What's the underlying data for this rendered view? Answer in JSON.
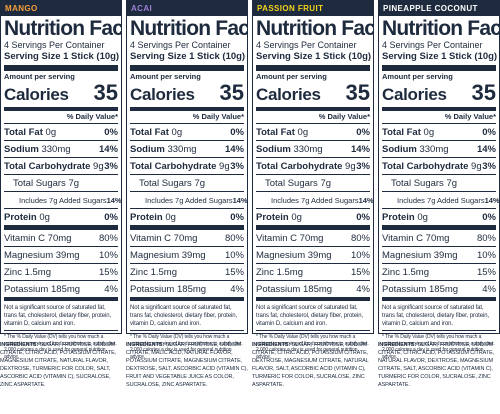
{
  "panels": [
    {
      "flavor": "MANGO",
      "flavor_color": "#f3a03c",
      "title": "Nutrition Facts",
      "servings": "4 Servings Per Container",
      "serving_size": "Serving Size 1 Stick (10g)",
      "amount_per_serving": "Amount per serving",
      "calories_label": "Calories",
      "calories_value": "35",
      "dv_header": "% Daily Value*",
      "nutrients": [
        {
          "label": "Total Fat",
          "amount": "0g",
          "dv": "0%"
        },
        {
          "label": "Sodium",
          "amount": "330mg",
          "dv": "14%"
        },
        {
          "label": "Total Carbohydrate",
          "amount": "9g",
          "dv": "3%"
        },
        {
          "label": "Total Sugars",
          "amount": "7g",
          "dv": ""
        },
        {
          "label": "Includes 7g Added Sugars",
          "amount": "",
          "dv": "14%"
        },
        {
          "label": "Protein",
          "amount": "0g",
          "dv": "0%"
        }
      ],
      "vitamins": [
        {
          "label": "Vitamin C",
          "amount": "70mg",
          "dv": "80%"
        },
        {
          "label": "Magnesium",
          "amount": "39mg",
          "dv": "10%"
        },
        {
          "label": "Zinc",
          "amount": "1.5mg",
          "dv": "15%"
        },
        {
          "label": "Potassium",
          "amount": "185mg",
          "dv": "4%"
        }
      ],
      "note": "Not a significant source of saturated fat, trans fat, cholesterol, dietary fiber, protein, vitamin D, calcium and iron.",
      "footnote": "* The % Daily Value (DV) tells you how much a nutrient in a serving of food contributes to a daily diet. 2,000 calories a day is used for general nutrition advice.",
      "ingredients_label": "INGREDIENTS:",
      "ingredients": "SUGAR, FRUCTOSE, SODIUM CITRATE, CITRIC ACID, POTASSIUM CITRATE, MAGNESIUM CITRATE, NATURAL FLAVOR, DEXTROSE, TURMERIC FOR COLOR, SALT, ASCORBIC ACID (VITAMIN C), SUCRALOSE, ZINC ASPARTATE."
    },
    {
      "flavor": "ACAI",
      "flavor_color": "#9d7fd6",
      "title": "Nutrition Facts",
      "servings": "4 Servings Per Container",
      "serving_size": "Serving Size 1 Stick (10g)",
      "amount_per_serving": "Amount per serving",
      "calories_label": "Calories",
      "calories_value": "35",
      "dv_header": "% Daily Value*",
      "nutrients": [
        {
          "label": "Total Fat",
          "amount": "0g",
          "dv": "0%"
        },
        {
          "label": "Sodium",
          "amount": "330mg",
          "dv": "14%"
        },
        {
          "label": "Total Carbohydrate",
          "amount": "9g",
          "dv": "3%"
        },
        {
          "label": "Total Sugars",
          "amount": "7g",
          "dv": ""
        },
        {
          "label": "Includes 7g Added Sugars",
          "amount": "",
          "dv": "14%"
        },
        {
          "label": "Protein",
          "amount": "0g",
          "dv": "0%"
        }
      ],
      "vitamins": [
        {
          "label": "Vitamin C",
          "amount": "70mg",
          "dv": "80%"
        },
        {
          "label": "Magnesium",
          "amount": "39mg",
          "dv": "10%"
        },
        {
          "label": "Zinc",
          "amount": "1.5mg",
          "dv": "15%"
        },
        {
          "label": "Potassium",
          "amount": "185mg",
          "dv": "4%"
        }
      ],
      "note": "Not a significant source of saturated fat, trans fat, cholesterol, dietary fiber, protein, vitamin D, calcium and iron.",
      "footnote": "* The % Daily Value (DV) tells you how much a nutrient in a serving of food contributes to a daily diet. 2,000 calories a day is used for general nutrition advice.",
      "ingredients_label": "INGREDIENTS:",
      "ingredients": "SUGAR, FRUCTOSE, SODIUM CITRATE, MALIC ACID, NATURAL FLAVOR, POTASSIUM CITRATE, MAGNESIUM CITRATE, DEXTROSE, SALT, ASCORBIC ACID (VITAMIN C), FRUIT AND VEGETABLE JUICE AS COLOR, SUCRALOSE, ZINC ASPARTATE."
    },
    {
      "flavor": "PASSION FRUIT",
      "flavor_color": "#f2d21b",
      "title": "Nutrition Facts",
      "servings": "4 Servings Per Container",
      "serving_size": "Serving Size 1 Stick (10g)",
      "amount_per_serving": "Amount per serving",
      "calories_label": "Calories",
      "calories_value": "35",
      "dv_header": "% Daily Value*",
      "nutrients": [
        {
          "label": "Total Fat",
          "amount": "0g",
          "dv": "0%"
        },
        {
          "label": "Sodium",
          "amount": "330mg",
          "dv": "14%"
        },
        {
          "label": "Total Carbohydrate",
          "amount": "9g",
          "dv": "3%"
        },
        {
          "label": "Total Sugars",
          "amount": "7g",
          "dv": ""
        },
        {
          "label": "Includes 7g Added Sugars",
          "amount": "",
          "dv": "14%"
        },
        {
          "label": "Protein",
          "amount": "0g",
          "dv": "0%"
        }
      ],
      "vitamins": [
        {
          "label": "Vitamin C",
          "amount": "70mg",
          "dv": "80%"
        },
        {
          "label": "Magnesium",
          "amount": "39mg",
          "dv": "10%"
        },
        {
          "label": "Zinc",
          "amount": "1.5mg",
          "dv": "15%"
        },
        {
          "label": "Potassium",
          "amount": "185mg",
          "dv": "4%"
        }
      ],
      "note": "Not a significant source of saturated fat, trans fat, cholesterol, dietary fiber, protein, vitamin D, calcium and iron.",
      "footnote": "* The % Daily Value (DV) tells you how much a nutrient in a serving of food contributes to a daily diet. 2,000 calories a day is used for general nutrition advice.",
      "ingredients_label": "INGREDIENTS:",
      "ingredients": "SUGAR, FRUCTOSE, SODIUM CITRATE, CITRIC ACID, POTASSIUM CITRATE, DEXTROSE, MAGNESIUM CITRATE, NATURAL FLAVOR, SALT, ASCORBIC ACID (VITAMIN C), TURMERIC FOR COLOR, SUCRALOSE, ZINC ASPARTATE."
    },
    {
      "flavor": "PINEAPPLE COCONUT",
      "flavor_color": "#ffffff",
      "title": "Nutrition Facts",
      "servings": "4 Servings Per Container",
      "serving_size": "Serving Size 1 Stick (10g)",
      "amount_per_serving": "Amount per serving",
      "calories_label": "Calories",
      "calories_value": "35",
      "dv_header": "% Daily Value*",
      "nutrients": [
        {
          "label": "Total Fat",
          "amount": "0g",
          "dv": "0%"
        },
        {
          "label": "Sodium",
          "amount": "330mg",
          "dv": "14%"
        },
        {
          "label": "Total Carbohydrate",
          "amount": "9g",
          "dv": "3%"
        },
        {
          "label": "Total Sugars",
          "amount": "7g",
          "dv": ""
        },
        {
          "label": "Includes 7g Added Sugars",
          "amount": "",
          "dv": "14%"
        },
        {
          "label": "Protein",
          "amount": "0g",
          "dv": "0%"
        }
      ],
      "vitamins": [
        {
          "label": "Vitamin C",
          "amount": "70mg",
          "dv": "80%"
        },
        {
          "label": "Magnesium",
          "amount": "39mg",
          "dv": "10%"
        },
        {
          "label": "Zinc",
          "amount": "1.5mg",
          "dv": "15%"
        },
        {
          "label": "Potassium",
          "amount": "185mg",
          "dv": "4%"
        }
      ],
      "note": "Not a significant source of saturated fat, trans fat, cholesterol, dietary fiber, protein, vitamin D, calcium and iron.",
      "footnote": "* The % Daily Value (DV) tells you how much a nutrient in a serving of food contributes to a daily diet. 2,000 calories a day is used for general nutrition advice.",
      "ingredients_label": "INGREDIENTS:",
      "ingredients": "SUGAR, FRUCTOSE, SODIUM CITRATE, CITRIC ACID, POTASSIUM CITRATE, NATURAL FLAVOR, DEXTROSE, MAGNESIUM CITRATE, SALT, ASCORBIC ACID (VITAMIN C), TURMERIC FOR COLOR, SUCRALOSE, ZINC ASPARTATE."
    }
  ]
}
